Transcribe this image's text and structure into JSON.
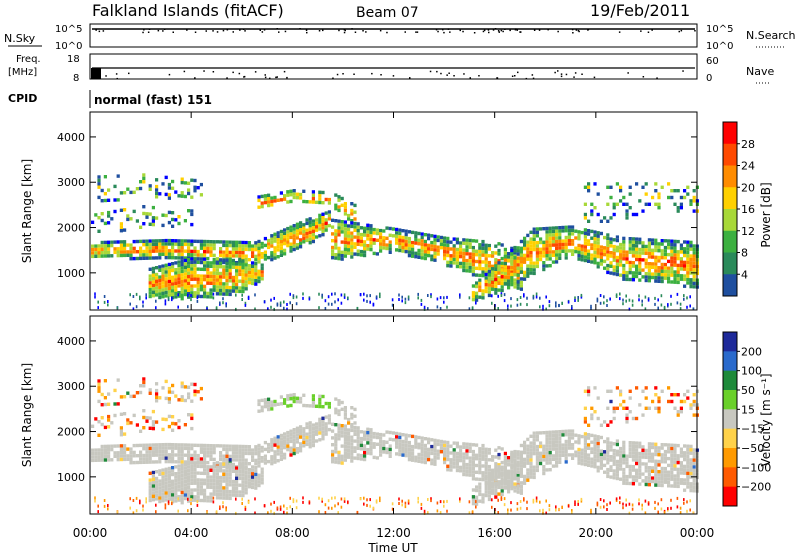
{
  "header": {
    "title": "Falkland Islands (fitACF)",
    "beam": "Beam 07",
    "date": "19/Feb/2011"
  },
  "top_panels": {
    "nsky": {
      "label": "N.Sky",
      "ticks": [
        "10^5",
        "10^0"
      ]
    },
    "nsearch": {
      "label": "N.Search",
      "ticks": [
        "10^5",
        "10^0"
      ]
    },
    "freq": {
      "label_line1": "Freq.",
      "label_line2": "[MHz]",
      "ticks": [
        "18",
        "8"
      ]
    },
    "nave": {
      "label": "Nave",
      "ticks": [
        "60",
        "0"
      ]
    },
    "cpid": {
      "label": "CPID",
      "value": "normal (fast) 151"
    }
  },
  "chart_data": [
    {
      "type": "heatmap",
      "name": "power",
      "ylabel": "Slant Range [km]",
      "ylim": [
        180,
        4550
      ],
      "yticks": [
        "4000",
        "3000",
        "2000",
        "1000"
      ],
      "xlim": [
        0,
        24
      ],
      "colorbar": {
        "label": "Power [dB]",
        "ticks": [
          "28",
          "24",
          "20",
          "16",
          "12",
          "8",
          "4"
        ],
        "colors": [
          "#ff0000",
          "#ff4a00",
          "#ff8c00",
          "#ffd000",
          "#a8d838",
          "#3cb040",
          "#2a8a5a",
          "#1f4f9f",
          "#0000ff"
        ]
      }
    },
    {
      "type": "heatmap",
      "name": "velocity",
      "ylabel": "Slant Range [km]",
      "ylim": [
        180,
        4550
      ],
      "yticks": [
        "4000",
        "3000",
        "2000",
        "1000"
      ],
      "xlim": [
        0,
        24
      ],
      "colorbar": {
        "label": "Velocity [m s⁻¹]",
        "ticks": [
          "200",
          "100",
          "50",
          "15",
          "−15",
          "−50",
          "−100",
          "−200"
        ],
        "colors": [
          "#1e2a9a",
          "#2a6acc",
          "#1e8a3a",
          "#6ad02a",
          "#c8c8c0",
          "#ffd24a",
          "#ff9a00",
          "#ff5a00",
          "#ff0000"
        ]
      }
    }
  ],
  "xaxis": {
    "ticks": [
      "00:00",
      "04:00",
      "08:00",
      "12:00",
      "16:00",
      "20:00",
      "00:00"
    ],
    "label": "Time UT"
  }
}
